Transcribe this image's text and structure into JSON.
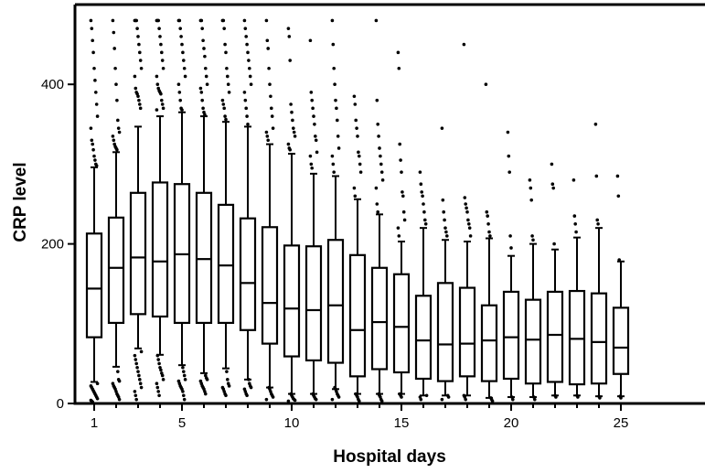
{
  "chart_data": {
    "type": "box",
    "title": "",
    "xlabel": "Hospital days",
    "ylabel": "CRP level",
    "xlim": [
      0.5,
      25.5
    ],
    "ylim": [
      0,
      500
    ],
    "x_ticks": [
      1,
      5,
      10,
      15,
      20,
      25
    ],
    "y_ticks": [
      0,
      200,
      400
    ],
    "grid": false,
    "box_color": "#000000",
    "categories": [
      1,
      2,
      3,
      4,
      5,
      6,
      7,
      8,
      9,
      10,
      11,
      12,
      13,
      14,
      15,
      16,
      17,
      18,
      19,
      20,
      21,
      22,
      23,
      24,
      25
    ],
    "boxes": [
      {
        "day": 1,
        "q1": 83,
        "median": 144,
        "q3": 213,
        "wlo": 27,
        "whi": 296
      },
      {
        "day": 2,
        "q1": 101,
        "median": 170,
        "q3": 233,
        "wlo": 46,
        "whi": 315
      },
      {
        "day": 3,
        "q1": 112,
        "median": 183,
        "q3": 264,
        "wlo": 69,
        "whi": 347
      },
      {
        "day": 4,
        "q1": 109,
        "median": 178,
        "q3": 277,
        "wlo": 61,
        "whi": 360
      },
      {
        "day": 5,
        "q1": 101,
        "median": 187,
        "q3": 275,
        "wlo": 48,
        "whi": 365
      },
      {
        "day": 6,
        "q1": 101,
        "median": 181,
        "q3": 264,
        "wlo": 38,
        "whi": 360
      },
      {
        "day": 7,
        "q1": 101,
        "median": 173,
        "q3": 249,
        "wlo": 44,
        "whi": 353
      },
      {
        "day": 8,
        "q1": 92,
        "median": 151,
        "q3": 232,
        "wlo": 30,
        "whi": 347
      },
      {
        "day": 9,
        "q1": 75,
        "median": 126,
        "q3": 221,
        "wlo": 20,
        "whi": 325
      },
      {
        "day": 10,
        "q1": 59,
        "median": 119,
        "q3": 198,
        "wlo": 12,
        "whi": 313
      },
      {
        "day": 11,
        "q1": 54,
        "median": 117,
        "q3": 197,
        "wlo": 12,
        "whi": 288
      },
      {
        "day": 12,
        "q1": 51,
        "median": 123,
        "q3": 205,
        "wlo": 18,
        "whi": 285
      },
      {
        "day": 13,
        "q1": 34,
        "median": 92,
        "q3": 186,
        "wlo": 12,
        "whi": 256
      },
      {
        "day": 14,
        "q1": 43,
        "median": 102,
        "q3": 170,
        "wlo": 12,
        "whi": 237
      },
      {
        "day": 15,
        "q1": 39,
        "median": 96,
        "q3": 162,
        "wlo": 12,
        "whi": 203
      },
      {
        "day": 16,
        "q1": 31,
        "median": 79,
        "q3": 135,
        "wlo": 10,
        "whi": 220
      },
      {
        "day": 17,
        "q1": 28,
        "median": 74,
        "q3": 151,
        "wlo": 10,
        "whi": 205
      },
      {
        "day": 18,
        "q1": 34,
        "median": 75,
        "q3": 145,
        "wlo": 10,
        "whi": 203
      },
      {
        "day": 19,
        "q1": 28,
        "median": 79,
        "q3": 123,
        "wlo": 7,
        "whi": 207
      },
      {
        "day": 20,
        "q1": 31,
        "median": 83,
        "q3": 140,
        "wlo": 8,
        "whi": 185
      },
      {
        "day": 21,
        "q1": 25,
        "median": 80,
        "q3": 130,
        "wlo": 8,
        "whi": 200
      },
      {
        "day": 22,
        "q1": 27,
        "median": 86,
        "q3": 140,
        "wlo": 10,
        "whi": 193
      },
      {
        "day": 23,
        "q1": 24,
        "median": 81,
        "q3": 141,
        "wlo": 10,
        "whi": 208
      },
      {
        "day": 24,
        "q1": 25,
        "median": 77,
        "q3": 138,
        "wlo": 9,
        "whi": 220
      },
      {
        "day": 25,
        "q1": 37,
        "median": 70,
        "q3": 120,
        "wlo": 9,
        "whi": 178
      }
    ],
    "outliers": [
      {
        "day": 1,
        "y": [
          480,
          470,
          455,
          440,
          420,
          405,
          390,
          375,
          360,
          345,
          330,
          325,
          318,
          310,
          305,
          300,
          298,
          25,
          22,
          20,
          18,
          16,
          14,
          12,
          10,
          8,
          6,
          4,
          3,
          2
        ]
      },
      {
        "day": 2,
        "y": [
          480,
          465,
          445,
          420,
          400,
          380,
          355,
          345,
          340,
          335,
          330,
          325,
          322,
          320,
          318,
          40,
          30,
          28,
          25,
          22,
          20,
          18,
          15,
          12,
          10,
          8,
          5
        ]
      },
      {
        "day": 3,
        "y": [
          480,
          480,
          480,
          470,
          460,
          450,
          440,
          430,
          420,
          410,
          395,
          390,
          388,
          385,
          380,
          375,
          370,
          65,
          60,
          55,
          50,
          45,
          40,
          35,
          30,
          25,
          20,
          15,
          10,
          5
        ]
      },
      {
        "day": 4,
        "y": [
          480,
          480,
          480,
          470,
          460,
          450,
          440,
          430,
          420,
          410,
          400,
          395,
          392,
          390,
          388,
          380,
          375,
          370,
          368,
          60,
          55,
          50,
          45,
          42,
          38,
          35,
          30,
          25,
          20,
          15,
          10
        ]
      },
      {
        "day": 5,
        "y": [
          480,
          480,
          470,
          460,
          450,
          440,
          430,
          420,
          410,
          400,
          390,
          380,
          370,
          368,
          45,
          40,
          35,
          30,
          28,
          25,
          22,
          20,
          18,
          15,
          10,
          5
        ]
      },
      {
        "day": 6,
        "y": [
          480,
          480,
          470,
          455,
          445,
          435,
          420,
          410,
          400,
          395,
          390,
          380,
          370,
          365,
          362,
          35,
          32,
          30,
          28,
          25,
          22,
          20,
          18,
          15,
          12
        ]
      },
      {
        "day": 7,
        "y": [
          480,
          480,
          470,
          450,
          440,
          420,
          410,
          400,
          390,
          380,
          375,
          370,
          360,
          356,
          40,
          30,
          25,
          22,
          20,
          18,
          15,
          12,
          10
        ]
      },
      {
        "day": 8,
        "y": [
          480,
          470,
          460,
          450,
          440,
          430,
          420,
          410,
          400,
          390,
          380,
          370,
          360,
          350,
          30,
          25,
          22,
          20,
          18,
          15,
          12,
          10
        ]
      },
      {
        "day": 9,
        "y": [
          480,
          455,
          445,
          420,
          400,
          385,
          370,
          360,
          345,
          340,
          335,
          330,
          20,
          18,
          15,
          12,
          10,
          8,
          5
        ]
      },
      {
        "day": 10,
        "y": [
          470,
          460,
          430,
          375,
          365,
          355,
          345,
          340,
          335,
          325,
          320,
          318,
          12,
          10,
          8,
          6,
          5,
          4,
          3
        ]
      },
      {
        "day": 11,
        "y": [
          455,
          390,
          380,
          370,
          360,
          350,
          335,
          330,
          315,
          310,
          300,
          295,
          12,
          10,
          8,
          6,
          5
        ]
      },
      {
        "day": 12,
        "y": [
          480,
          450,
          420,
          400,
          380,
          370,
          355,
          335,
          320,
          310,
          300,
          290,
          20,
          18,
          15,
          12,
          10,
          8,
          5
        ]
      },
      {
        "day": 13,
        "y": [
          385,
          375,
          355,
          345,
          335,
          315,
          310,
          300,
          290,
          270,
          260,
          12,
          10,
          8,
          5,
          3
        ]
      },
      {
        "day": 14,
        "y": [
          480,
          380,
          350,
          335,
          320,
          310,
          300,
          290,
          280,
          270,
          250,
          240,
          12,
          10,
          8,
          5,
          3
        ]
      },
      {
        "day": 15,
        "y": [
          440,
          420,
          325,
          305,
          290,
          265,
          260,
          240,
          230,
          220,
          210,
          12,
          10,
          8
        ]
      },
      {
        "day": 16,
        "y": [
          290,
          275,
          265,
          260,
          250,
          240,
          230,
          225,
          10,
          8,
          5
        ]
      },
      {
        "day": 17,
        "y": [
          345,
          255,
          240,
          230,
          220,
          215,
          210,
          10,
          8,
          5
        ]
      },
      {
        "day": 18,
        "y": [
          450,
          258,
          250,
          245,
          240,
          230,
          225,
          220,
          210,
          10,
          8,
          5
        ]
      },
      {
        "day": 19,
        "y": [
          400,
          240,
          235,
          225,
          215,
          210,
          7,
          5,
          3
        ]
      },
      {
        "day": 20,
        "y": [
          340,
          310,
          290,
          210,
          195,
          8,
          5
        ]
      },
      {
        "day": 21,
        "y": [
          280,
          270,
          255,
          210,
          205,
          8,
          5
        ]
      },
      {
        "day": 22,
        "y": [
          300,
          275,
          270,
          200,
          10,
          8
        ]
      },
      {
        "day": 23,
        "y": [
          280,
          235,
          225,
          215,
          10,
          8
        ]
      },
      {
        "day": 24,
        "y": [
          350,
          285,
          230,
          225,
          9,
          7
        ]
      },
      {
        "day": 25,
        "y": [
          285,
          260,
          180,
          9,
          7
        ]
      }
    ]
  }
}
